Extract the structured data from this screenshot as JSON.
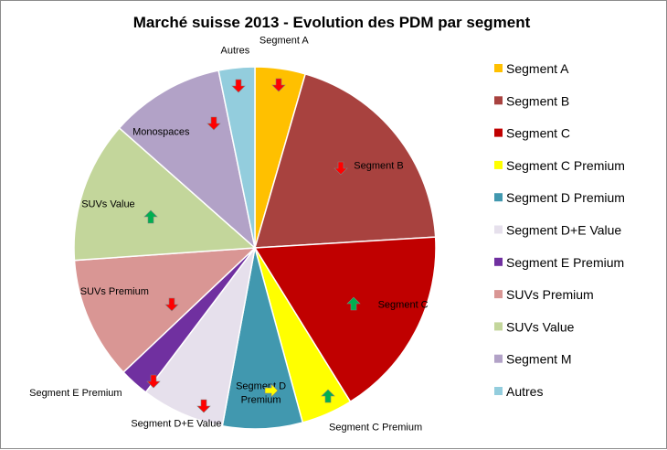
{
  "chart_data": {
    "type": "pie",
    "title": "Marché suisse 2013 - Evolution des PDM par segment",
    "legend_position": "right",
    "slices": [
      {
        "name": "Segment A",
        "value": 4.6,
        "color": "#FFC000",
        "label": "Segment  A",
        "trend": "down"
      },
      {
        "name": "Segment B",
        "value": 20.0,
        "color": "#A8423F",
        "label": "Segment  B",
        "trend": "down"
      },
      {
        "name": "Segment C",
        "value": 17.5,
        "color": "#C00000",
        "label": "Segment  C",
        "trend": "up"
      },
      {
        "name": "Segment C Premium",
        "value": 4.7,
        "color": "#FFFF00",
        "label": "Segment  C Premium",
        "trend": "up"
      },
      {
        "name": "Segment D Premium",
        "value": 7.3,
        "color": "#4198AF",
        "label": "Segment  D Premium",
        "trend": "flat"
      },
      {
        "name": "Segment D+E Value",
        "value": 7.6,
        "color": "#E6E0EC",
        "label": "Segment  D+E Value",
        "trend": "down"
      },
      {
        "name": "Segment E Premium",
        "value": 2.7,
        "color": "#7030A0",
        "label": "Segment  E Premium",
        "trend": "down"
      },
      {
        "name": "SUVs Premium",
        "value": 11.2,
        "color": "#D99694",
        "label": "SUVs Premium",
        "trend": "down"
      },
      {
        "name": "SUVs Value",
        "value": 12.9,
        "color": "#C3D69B",
        "label": "SUVs Value",
        "trend": "up"
      },
      {
        "name": "Segment M",
        "value": 10.5,
        "color": "#B2A2C7",
        "label": "Monospaces",
        "trend": "down"
      },
      {
        "name": "Autres",
        "value": 3.3,
        "color": "#93CDDD",
        "label": "Autres",
        "trend": "down"
      }
    ],
    "trend_colors": {
      "down": "#FF0000",
      "up": "#00B050",
      "flat": "#FFFF00"
    }
  }
}
